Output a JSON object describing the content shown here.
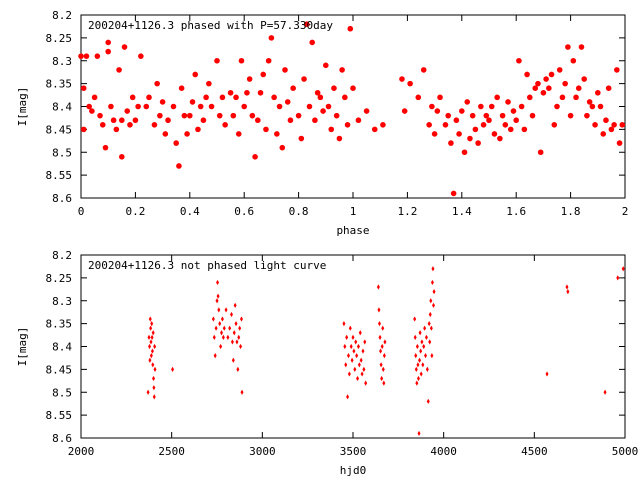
{
  "chart_data": [
    {
      "type": "scatter",
      "title": "200204+1126.3 phased with P=57.330day",
      "xlabel": "phase",
      "ylabel": "I[mag]",
      "xlim": [
        0,
        2
      ],
      "ylim": [
        8.6,
        8.2
      ],
      "y_inverted": true,
      "x_ticks": [
        "0",
        "0.2",
        "0.4",
        "0.6",
        "0.8",
        "1",
        "1.2",
        "1.4",
        "1.6",
        "1.8",
        "2"
      ],
      "y_ticks": [
        "8.2",
        "8.25",
        "8.3",
        "8.35",
        "8.4",
        "8.45",
        "8.5",
        "8.55",
        "8.6"
      ],
      "marker": "filled-circle",
      "color": "#ff0000",
      "grid": false,
      "points": [
        [
          0.0,
          8.29
        ],
        [
          0.01,
          8.36
        ],
        [
          0.01,
          8.45
        ],
        [
          0.02,
          8.29
        ],
        [
          0.03,
          8.4
        ],
        [
          0.04,
          8.41
        ],
        [
          0.05,
          8.38
        ],
        [
          0.06,
          8.29
        ],
        [
          0.07,
          8.42
        ],
        [
          0.08,
          8.44
        ],
        [
          0.09,
          8.49
        ],
        [
          0.1,
          8.26
        ],
        [
          0.1,
          8.28
        ],
        [
          0.11,
          8.4
        ],
        [
          0.12,
          8.43
        ],
        [
          0.13,
          8.45
        ],
        [
          0.14,
          8.32
        ],
        [
          0.15,
          8.43
        ],
        [
          0.15,
          8.51
        ],
        [
          0.16,
          8.27
        ],
        [
          0.17,
          8.41
        ],
        [
          0.18,
          8.44
        ],
        [
          0.19,
          8.38
        ],
        [
          0.2,
          8.43
        ],
        [
          0.21,
          8.4
        ],
        [
          0.22,
          8.29
        ],
        [
          0.24,
          8.4
        ],
        [
          0.25,
          8.38
        ],
        [
          0.27,
          8.44
        ],
        [
          0.28,
          8.35
        ],
        [
          0.29,
          8.42
        ],
        [
          0.3,
          8.39
        ],
        [
          0.31,
          8.46
        ],
        [
          0.32,
          8.43
        ],
        [
          0.34,
          8.4
        ],
        [
          0.35,
          8.48
        ],
        [
          0.36,
          8.53
        ],
        [
          0.37,
          8.36
        ],
        [
          0.38,
          8.42
        ],
        [
          0.39,
          8.46
        ],
        [
          0.4,
          8.42
        ],
        [
          0.41,
          8.39
        ],
        [
          0.42,
          8.33
        ],
        [
          0.43,
          8.45
        ],
        [
          0.44,
          8.4
        ],
        [
          0.45,
          8.43
        ],
        [
          0.46,
          8.38
        ],
        [
          0.47,
          8.35
        ],
        [
          0.48,
          8.4
        ],
        [
          0.5,
          8.3
        ],
        [
          0.51,
          8.42
        ],
        [
          0.52,
          8.38
        ],
        [
          0.53,
          8.44
        ],
        [
          0.55,
          8.37
        ],
        [
          0.56,
          8.42
        ],
        [
          0.57,
          8.38
        ],
        [
          0.58,
          8.46
        ],
        [
          0.59,
          8.3
        ],
        [
          0.6,
          8.4
        ],
        [
          0.61,
          8.37
        ],
        [
          0.62,
          8.34
        ],
        [
          0.63,
          8.42
        ],
        [
          0.64,
          8.51
        ],
        [
          0.65,
          8.43
        ],
        [
          0.66,
          8.37
        ],
        [
          0.67,
          8.33
        ],
        [
          0.68,
          8.45
        ],
        [
          0.69,
          8.3
        ],
        [
          0.7,
          8.25
        ],
        [
          0.71,
          8.38
        ],
        [
          0.72,
          8.46
        ],
        [
          0.73,
          8.4
        ],
        [
          0.74,
          8.49
        ],
        [
          0.75,
          8.32
        ],
        [
          0.76,
          8.39
        ],
        [
          0.77,
          8.43
        ],
        [
          0.78,
          8.36
        ],
        [
          0.8,
          8.42
        ],
        [
          0.81,
          8.47
        ],
        [
          0.82,
          8.34
        ],
        [
          0.83,
          8.22
        ],
        [
          0.84,
          8.4
        ],
        [
          0.85,
          8.26
        ],
        [
          0.86,
          8.43
        ],
        [
          0.87,
          8.37
        ],
        [
          0.88,
          8.38
        ],
        [
          0.89,
          8.41
        ],
        [
          0.9,
          8.31
        ],
        [
          0.91,
          8.4
        ],
        [
          0.92,
          8.45
        ],
        [
          0.93,
          8.36
        ],
        [
          0.94,
          8.42
        ],
        [
          0.95,
          8.47
        ],
        [
          0.96,
          8.32
        ],
        [
          0.97,
          8.38
        ],
        [
          0.98,
          8.44
        ],
        [
          0.99,
          8.23
        ],
        [
          1.0,
          8.36
        ],
        [
          1.02,
          8.43
        ],
        [
          1.05,
          8.41
        ],
        [
          1.08,
          8.45
        ],
        [
          1.11,
          8.44
        ],
        [
          1.18,
          8.34
        ],
        [
          1.19,
          8.41
        ],
        [
          1.21,
          8.35
        ],
        [
          1.24,
          8.38
        ],
        [
          1.26,
          8.32
        ],
        [
          1.28,
          8.44
        ],
        [
          1.29,
          8.4
        ],
        [
          1.3,
          8.46
        ],
        [
          1.31,
          8.41
        ],
        [
          1.32,
          8.38
        ],
        [
          1.34,
          8.44
        ],
        [
          1.35,
          8.42
        ],
        [
          1.36,
          8.48
        ],
        [
          1.37,
          8.59
        ],
        [
          1.38,
          8.43
        ],
        [
          1.39,
          8.46
        ],
        [
          1.4,
          8.41
        ],
        [
          1.41,
          8.5
        ],
        [
          1.42,
          8.39
        ],
        [
          1.43,
          8.47
        ],
        [
          1.44,
          8.42
        ],
        [
          1.45,
          8.45
        ],
        [
          1.46,
          8.48
        ],
        [
          1.47,
          8.4
        ],
        [
          1.48,
          8.44
        ],
        [
          1.49,
          8.42
        ],
        [
          1.5,
          8.43
        ],
        [
          1.51,
          8.4
        ],
        [
          1.52,
          8.46
        ],
        [
          1.53,
          8.38
        ],
        [
          1.54,
          8.47
        ],
        [
          1.55,
          8.42
        ],
        [
          1.56,
          8.44
        ],
        [
          1.57,
          8.39
        ],
        [
          1.58,
          8.45
        ],
        [
          1.59,
          8.41
        ],
        [
          1.6,
          8.43
        ],
        [
          1.61,
          8.3
        ],
        [
          1.62,
          8.4
        ],
        [
          1.63,
          8.45
        ],
        [
          1.64,
          8.33
        ],
        [
          1.65,
          8.38
        ],
        [
          1.66,
          8.42
        ],
        [
          1.67,
          8.36
        ],
        [
          1.68,
          8.35
        ],
        [
          1.69,
          8.5
        ],
        [
          1.7,
          8.37
        ],
        [
          1.71,
          8.34
        ],
        [
          1.72,
          8.36
        ],
        [
          1.73,
          8.33
        ],
        [
          1.74,
          8.44
        ],
        [
          1.75,
          8.4
        ],
        [
          1.76,
          8.32
        ],
        [
          1.77,
          8.38
        ],
        [
          1.78,
          8.35
        ],
        [
          1.79,
          8.27
        ],
        [
          1.8,
          8.42
        ],
        [
          1.81,
          8.3
        ],
        [
          1.82,
          8.38
        ],
        [
          1.83,
          8.36
        ],
        [
          1.84,
          8.27
        ],
        [
          1.85,
          8.34
        ],
        [
          1.86,
          8.42
        ],
        [
          1.87,
          8.39
        ],
        [
          1.88,
          8.4
        ],
        [
          1.89,
          8.44
        ],
        [
          1.9,
          8.37
        ],
        [
          1.91,
          8.4
        ],
        [
          1.92,
          8.46
        ],
        [
          1.93,
          8.43
        ],
        [
          1.94,
          8.36
        ],
        [
          1.95,
          8.45
        ],
        [
          1.96,
          8.44
        ],
        [
          1.97,
          8.32
        ],
        [
          1.98,
          8.48
        ],
        [
          1.99,
          8.44
        ]
      ]
    },
    {
      "type": "scatter",
      "title": "200204+1126.3 not phased light curve",
      "xlabel": "hjd0",
      "ylabel": "I[mag]",
      "xlim": [
        2000,
        5000
      ],
      "ylim": [
        8.6,
        8.2
      ],
      "y_inverted": true,
      "x_ticks": [
        "2000",
        "2500",
        "3000",
        "3500",
        "4000",
        "4500",
        "5000"
      ],
      "y_ticks": [
        "8.2",
        "8.25",
        "8.3",
        "8.35",
        "8.4",
        "8.45",
        "8.5",
        "8.55",
        "8.6"
      ],
      "marker": "small-diamond",
      "color": "#ff0000",
      "grid": false,
      "points": [
        [
          2370,
          8.5
        ],
        [
          2375,
          8.38
        ],
        [
          2378,
          8.4
        ],
        [
          2380,
          8.43
        ],
        [
          2382,
          8.34
        ],
        [
          2384,
          8.36
        ],
        [
          2386,
          8.39
        ],
        [
          2388,
          8.42
        ],
        [
          2390,
          8.35
        ],
        [
          2392,
          8.38
        ],
        [
          2394,
          8.41
        ],
        [
          2396,
          8.44
        ],
        [
          2398,
          8.37
        ],
        [
          2400,
          8.47
        ],
        [
          2402,
          8.49
        ],
        [
          2404,
          8.51
        ],
        [
          2406,
          8.4
        ],
        [
          2408,
          8.45
        ],
        [
          2505,
          8.45
        ],
        [
          2730,
          8.34
        ],
        [
          2735,
          8.38
        ],
        [
          2740,
          8.42
        ],
        [
          2745,
          8.36
        ],
        [
          2750,
          8.3
        ],
        [
          2753,
          8.26
        ],
        [
          2756,
          8.29
        ],
        [
          2760,
          8.32
        ],
        [
          2765,
          8.35
        ],
        [
          2770,
          8.4
        ],
        [
          2775,
          8.37
        ],
        [
          2780,
          8.34
        ],
        [
          2785,
          8.38
        ],
        [
          2790,
          8.36
        ],
        [
          2800,
          8.32
        ],
        [
          2810,
          8.38
        ],
        [
          2820,
          8.36
        ],
        [
          2830,
          8.33
        ],
        [
          2835,
          8.39
        ],
        [
          2840,
          8.43
        ],
        [
          2845,
          8.37
        ],
        [
          2850,
          8.31
        ],
        [
          2855,
          8.35
        ],
        [
          2860,
          8.39
        ],
        [
          2865,
          8.45
        ],
        [
          2870,
          8.38
        ],
        [
          2875,
          8.36
        ],
        [
          2880,
          8.4
        ],
        [
          2885,
          8.34
        ],
        [
          2888,
          8.5
        ],
        [
          3450,
          8.35
        ],
        [
          3455,
          8.4
        ],
        [
          3460,
          8.44
        ],
        [
          3465,
          8.38
        ],
        [
          3470,
          8.51
        ],
        [
          3475,
          8.42
        ],
        [
          3480,
          8.46
        ],
        [
          3485,
          8.36
        ],
        [
          3490,
          8.4
        ],
        [
          3495,
          8.43
        ],
        [
          3500,
          8.38
        ],
        [
          3505,
          8.41
        ],
        [
          3510,
          8.45
        ],
        [
          3515,
          8.39
        ],
        [
          3520,
          8.42
        ],
        [
          3525,
          8.47
        ],
        [
          3530,
          8.4
        ],
        [
          3535,
          8.44
        ],
        [
          3540,
          8.37
        ],
        [
          3545,
          8.43
        ],
        [
          3550,
          8.46
        ],
        [
          3555,
          8.41
        ],
        [
          3560,
          8.45
        ],
        [
          3565,
          8.39
        ],
        [
          3570,
          8.48
        ],
        [
          3640,
          8.27
        ],
        [
          3643,
          8.32
        ],
        [
          3646,
          8.35
        ],
        [
          3649,
          8.38
        ],
        [
          3652,
          8.41
        ],
        [
          3655,
          8.44
        ],
        [
          3658,
          8.47
        ],
        [
          3661,
          8.4
        ],
        [
          3664,
          8.36
        ],
        [
          3667,
          8.45
        ],
        [
          3670,
          8.48
        ],
        [
          3673,
          8.42
        ],
        [
          3676,
          8.39
        ],
        [
          3840,
          8.34
        ],
        [
          3843,
          8.38
        ],
        [
          3846,
          8.42
        ],
        [
          3849,
          8.45
        ],
        [
          3852,
          8.48
        ],
        [
          3855,
          8.4
        ],
        [
          3858,
          8.44
        ],
        [
          3861,
          8.47
        ],
        [
          3864,
          8.59
        ],
        [
          3867,
          8.43
        ],
        [
          3870,
          8.37
        ],
        [
          3873,
          8.41
        ],
        [
          3876,
          8.46
        ],
        [
          3880,
          8.39
        ],
        [
          3885,
          8.44
        ],
        [
          3890,
          8.4
        ],
        [
          3895,
          8.36
        ],
        [
          3900,
          8.42
        ],
        [
          3905,
          8.38
        ],
        [
          3910,
          8.45
        ],
        [
          3915,
          8.52
        ],
        [
          3920,
          8.35
        ],
        [
          3923,
          8.39
        ],
        [
          3926,
          8.33
        ],
        [
          3929,
          8.3
        ],
        [
          3932,
          8.36
        ],
        [
          3935,
          8.42
        ],
        [
          3938,
          8.26
        ],
        [
          3941,
          8.23
        ],
        [
          3944,
          8.31
        ],
        [
          3947,
          8.28
        ],
        [
          4570,
          8.46
        ],
        [
          4680,
          8.27
        ],
        [
          4685,
          8.28
        ],
        [
          4890,
          8.5
        ],
        [
          4960,
          8.25
        ],
        [
          4990,
          8.23
        ]
      ]
    }
  ]
}
